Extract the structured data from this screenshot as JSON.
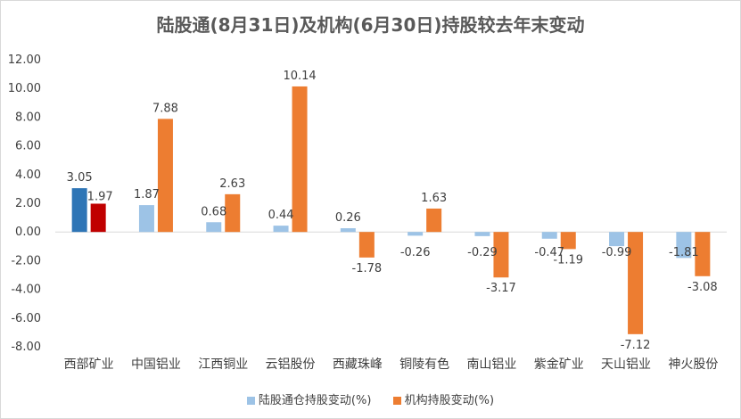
{
  "chart_data": {
    "type": "bar",
    "title": "陆股通(8月31日)及机构(6月30日)持股较去年末变动",
    "categories": [
      "西部矿业",
      "中国铝业",
      "江西铜业",
      "云铝股份",
      "西藏珠峰",
      "铜陵有色",
      "南山铝业",
      "紫金矿业",
      "天山铝业",
      "神火股份"
    ],
    "series": [
      {
        "name": "陆股通仓持股变动(%)",
        "color": "#9dc3e6",
        "highlight_color": "#2e75b6",
        "values": [
          3.05,
          1.87,
          0.68,
          0.44,
          0.26,
          -0.26,
          -0.29,
          -0.47,
          -0.99,
          -1.81
        ],
        "labels": [
          "3.05",
          "1.87",
          "0.68",
          "0.44",
          "0.26",
          "-0.26",
          "-0.29",
          "-0.47",
          "-0.99",
          "-1.81"
        ]
      },
      {
        "name": "机构持股变动(%)",
        "color": "#ed7d31",
        "highlight_color": "#c00000",
        "values": [
          1.97,
          7.88,
          2.63,
          10.14,
          -1.78,
          1.63,
          -3.17,
          -1.19,
          -7.12,
          -3.08
        ],
        "labels": [
          "1.97",
          "7.88",
          "2.63",
          "10.14",
          "-1.78",
          "1.63",
          "-3.17",
          "-1.19",
          "-7.12",
          "-3.08"
        ]
      }
    ],
    "yticks": [
      "12.00",
      "10.00",
      "8.00",
      "6.00",
      "4.00",
      "2.00",
      "0.00",
      "-2.00",
      "-4.00",
      "-6.00",
      "-8.00"
    ],
    "ylim": [
      -8,
      12
    ],
    "grid": false,
    "legend": "bottom"
  }
}
